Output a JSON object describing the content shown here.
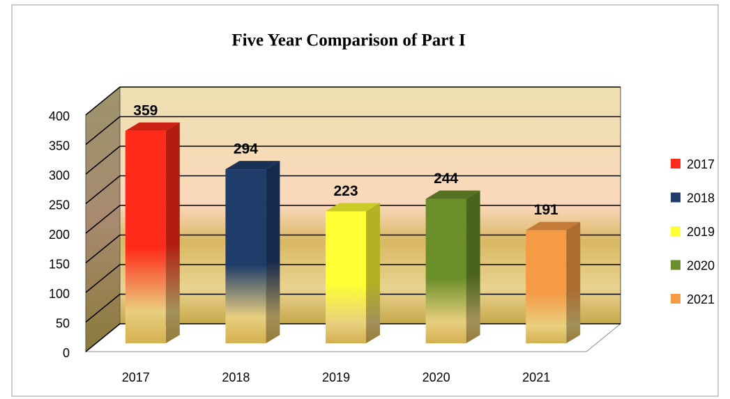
{
  "chart_data": {
    "type": "bar3d",
    "title": "Five Year Comparison of Part I",
    "categories": [
      "2017",
      "2018",
      "2019",
      "2020",
      "2021"
    ],
    "values": [
      359,
      294,
      223,
      244,
      191
    ],
    "colors": [
      "#ff2a1a",
      "#1f3d6b",
      "#ffff33",
      "#6a8f2a",
      "#f59a45"
    ],
    "ylim": [
      0,
      400
    ],
    "yticks": [
      0,
      50,
      100,
      150,
      200,
      250,
      300,
      350,
      400
    ],
    "grid": true,
    "legend": "right"
  }
}
